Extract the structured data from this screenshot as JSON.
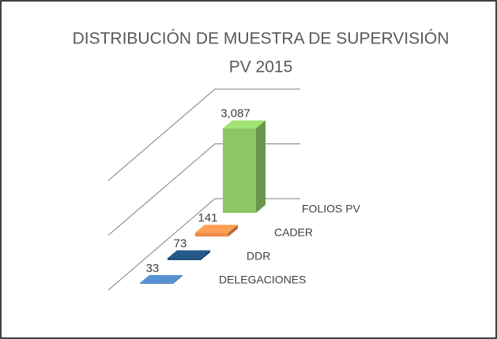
{
  "chart_data": {
    "type": "bar3d",
    "title": "DISTRIBUCIÓN DE MUESTRA DE SUPERVISIÓN",
    "subtitle": "PV 2015",
    "categories": [
      "DELEGACIONES",
      "DDR",
      "CADER",
      "FOLIOS PV"
    ],
    "values": [
      33,
      73,
      141,
      3087
    ],
    "value_labels": [
      "33",
      "73",
      "141",
      "3,087"
    ],
    "colors": [
      "#4a7fb8",
      "#1f4e79",
      "#ee8a4a",
      "#8cc665"
    ],
    "ylim": [
      0,
      4000
    ],
    "yticks": [
      0,
      2000,
      4000
    ],
    "grid": true
  }
}
